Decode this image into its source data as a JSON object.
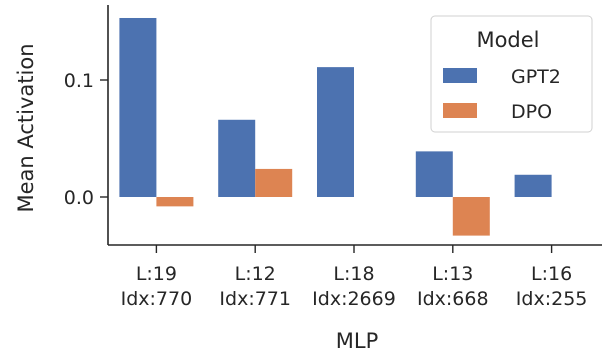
{
  "chart_data": {
    "type": "bar",
    "title": "",
    "xlabel": "MLP",
    "ylabel": "Mean Activation",
    "categories": [
      [
        "L:19",
        "Idx:770"
      ],
      [
        "L:12",
        "Idx:771"
      ],
      [
        "L:18",
        "Idx:2669"
      ],
      [
        "L:13",
        "Idx:668"
      ],
      [
        "L:16",
        "Idx:255"
      ]
    ],
    "series": [
      {
        "name": "GPT2",
        "color": "#4c72b0",
        "values": [
          0.153,
          0.066,
          0.111,
          0.039,
          0.019
        ]
      },
      {
        "name": "DPO",
        "color": "#dd8452",
        "values": [
          -0.008,
          0.024,
          0.0,
          -0.033,
          0.0
        ]
      }
    ],
    "ylim": [
      -0.043,
      0.165
    ],
    "yticks": [
      0.0,
      0.1
    ],
    "ytick_labels": [
      "0.0",
      "0.1"
    ],
    "grid": false,
    "legend": {
      "title": "Model",
      "position": "top-right"
    }
  }
}
